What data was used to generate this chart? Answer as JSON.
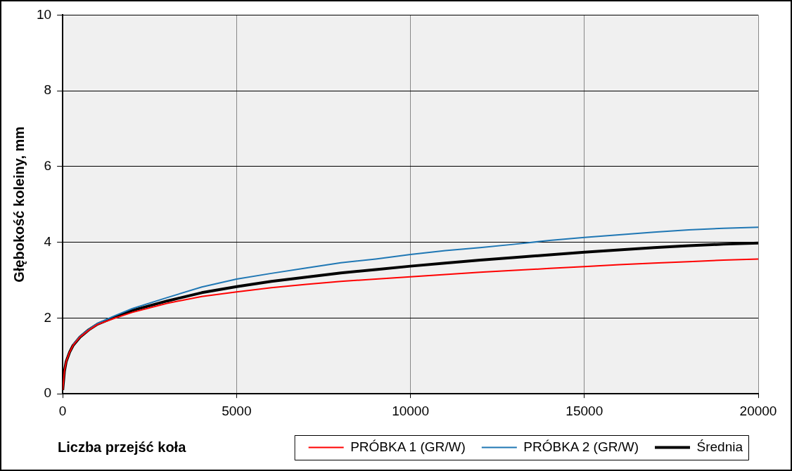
{
  "chart_data": {
    "type": "line",
    "xlabel": "Liczba przejść koła",
    "ylabel": "Głębokość koleiny, mm",
    "x": [
      0,
      50,
      100,
      200,
      300,
      500,
      750,
      1000,
      1500,
      2000,
      3000,
      4000,
      5000,
      6000,
      7000,
      8000,
      9000,
      10000,
      11000,
      12000,
      13000,
      14000,
      15000,
      16000,
      17000,
      18000,
      19000,
      20000
    ],
    "series": [
      {
        "name": "PRÓBKA 1 (GR/W)",
        "color": "#ff0000",
        "values": [
          0.1,
          0.6,
          0.85,
          1.1,
          1.28,
          1.5,
          1.68,
          1.83,
          2.0,
          2.15,
          2.39,
          2.57,
          2.69,
          2.8,
          2.89,
          2.97,
          3.03,
          3.09,
          3.15,
          3.21,
          3.26,
          3.31,
          3.36,
          3.41,
          3.45,
          3.49,
          3.53,
          3.56
        ]
      },
      {
        "name": "PRÓBKA 2 (GR/W)",
        "color": "#1f77b4",
        "values": [
          null,
          null,
          null,
          null,
          1.3,
          1.52,
          1.7,
          1.86,
          2.06,
          2.25,
          2.54,
          2.82,
          3.03,
          3.18,
          3.32,
          3.46,
          3.56,
          3.68,
          3.78,
          3.86,
          3.95,
          4.05,
          4.13,
          4.2,
          4.27,
          4.33,
          4.37,
          4.4
        ]
      },
      {
        "name": "Średnia",
        "color": "#000000",
        "values": [
          0.1,
          0.6,
          0.85,
          1.1,
          1.28,
          1.5,
          1.69,
          1.84,
          2.03,
          2.2,
          2.45,
          2.67,
          2.83,
          2.97,
          3.08,
          3.19,
          3.28,
          3.37,
          3.45,
          3.53,
          3.6,
          3.67,
          3.74,
          3.8,
          3.86,
          3.91,
          3.95,
          3.98
        ]
      }
    ],
    "xlim": [
      0,
      20000
    ],
    "xticks": [
      0,
      5000,
      10000,
      15000,
      20000
    ],
    "ylim": [
      0,
      10
    ],
    "yticks": [
      0,
      2,
      4,
      6,
      8,
      10
    ],
    "grid": true,
    "legend": "bottom right",
    "marker": "none",
    "line_style": "solid"
  }
}
